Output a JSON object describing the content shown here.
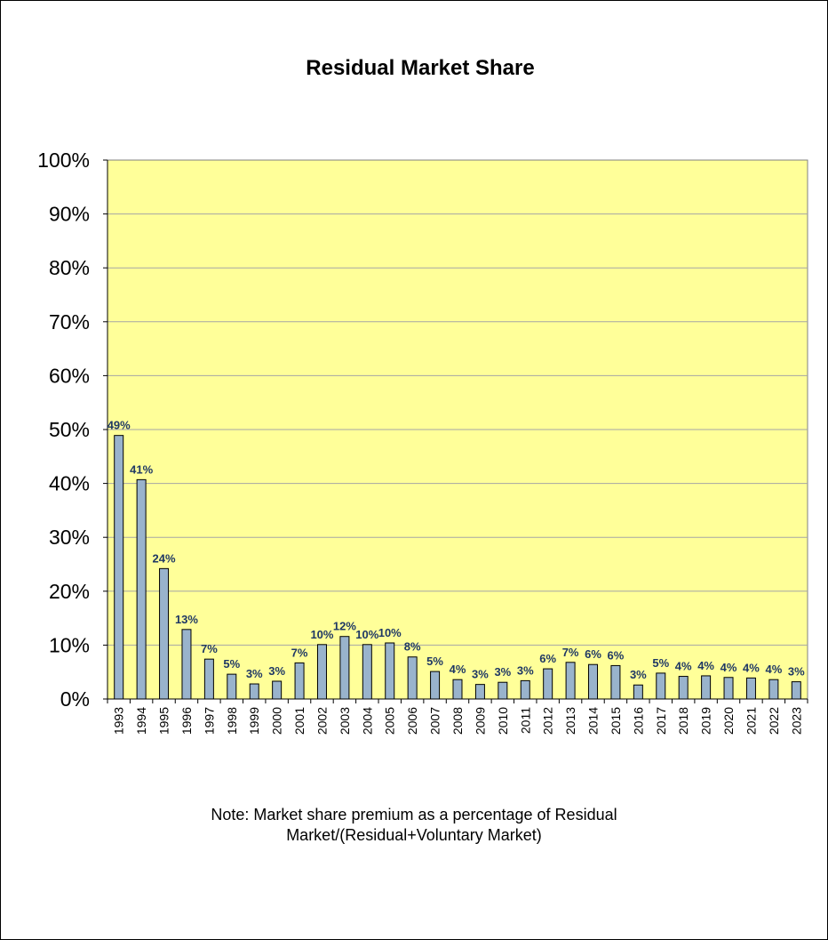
{
  "chart_data": {
    "type": "bar",
    "title": "Residual Market Share",
    "xlabel": "",
    "ylabel": "",
    "ylim": [
      0,
      100
    ],
    "yticks": [
      "0%",
      "10%",
      "20%",
      "30%",
      "40%",
      "50%",
      "60%",
      "70%",
      "80%",
      "90%",
      "100%"
    ],
    "grid": true,
    "categories": [
      "1993",
      "1994",
      "1995",
      "1996",
      "1997",
      "1998",
      "1999",
      "2000",
      "2001",
      "2002",
      "2003",
      "2004",
      "2005",
      "2006",
      "2007",
      "2008",
      "2009",
      "2010",
      "2011",
      "2012",
      "2013",
      "2014",
      "2015",
      "2016",
      "2017",
      "2018",
      "2019",
      "2020",
      "2021",
      "2022",
      "2023"
    ],
    "values": [
      48.9,
      40.7,
      24.2,
      12.9,
      7.4,
      4.6,
      2.8,
      3.3,
      6.7,
      10.1,
      11.6,
      10.1,
      10.4,
      7.8,
      5.1,
      3.6,
      2.7,
      3.1,
      3.4,
      5.6,
      6.8,
      6.4,
      6.2,
      2.6,
      4.8,
      4.2,
      4.3,
      4.0,
      3.9,
      3.6,
      3.2
    ],
    "data_labels": [
      "49%",
      "41%",
      "24%",
      "13%",
      "7%",
      "5%",
      "3%",
      "3%",
      "7%",
      "10%",
      "12%",
      "10%",
      "10%",
      "8%",
      "5%",
      "4%",
      "3%",
      "3%",
      "3%",
      "6%",
      "7%",
      "6%",
      "6%",
      "3%",
      "5%",
      "4%",
      "4%",
      "4%",
      "4%",
      "4%",
      "3%"
    ],
    "colors": {
      "plot_background": "#ffff99",
      "bar_fill": "#99b3cc",
      "bar_stroke": "#000000",
      "data_label": "#1f3864",
      "gridline": "#a6a6a6"
    }
  },
  "note": {
    "line1": "Note: Market share premium as a percentage of Residual",
    "line2": "Market/(Residual+Voluntary  Market)"
  }
}
